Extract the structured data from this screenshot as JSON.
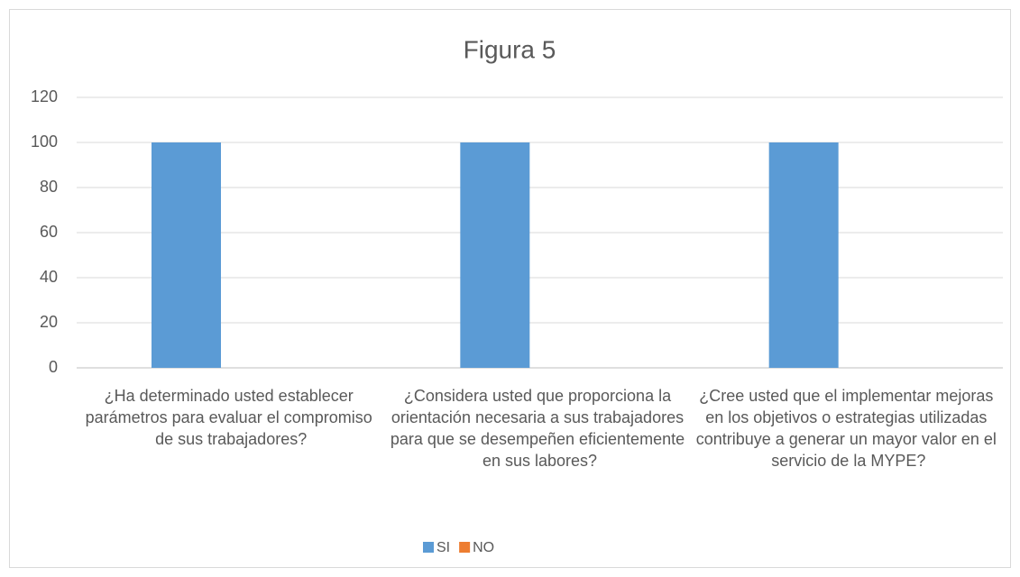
{
  "chart_data": {
    "type": "bar",
    "title": "Figura  5",
    "categories": [
      "¿Ha determinado usted establecer parámetros para evaluar el compromiso de sus trabajadores?",
      "¿Considera usted que proporciona la orientación necesaria a sus trabajadores para que se desempeñen eficientemente en sus labores?",
      "¿Cree usted que el implementar mejoras en los objetivos o estrategias utilizadas contribuye a generar un mayor valor en el servicio de la MYPE?"
    ],
    "series": [
      {
        "name": "SI",
        "color": "#5b9bd5",
        "values": [
          100,
          100,
          100
        ]
      },
      {
        "name": "NO",
        "color": "#ed7d31",
        "values": [
          0,
          0,
          0
        ]
      }
    ],
    "ylim": [
      0,
      120
    ],
    "yticks": [
      0,
      20,
      40,
      60,
      80,
      100,
      120
    ],
    "grid": true,
    "legend": "bottom"
  }
}
